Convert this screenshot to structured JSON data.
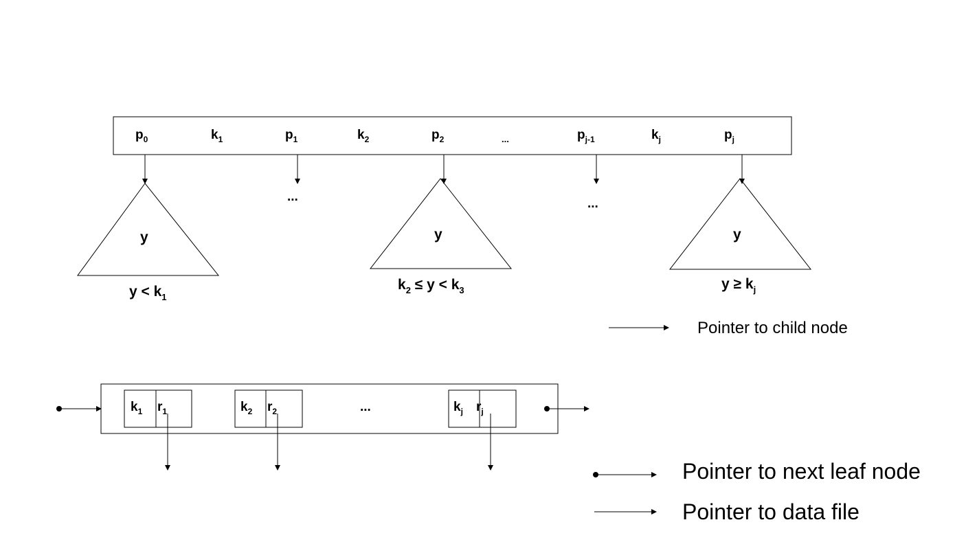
{
  "internal_node": {
    "labels": [
      {
        "base": "p",
        "sub": "0"
      },
      {
        "base": "k",
        "sub": "1"
      },
      {
        "base": "p",
        "sub": "1"
      },
      {
        "base": "k",
        "sub": "2"
      },
      {
        "base": "p",
        "sub": "2"
      },
      {
        "base": "...",
        "sub": ""
      },
      {
        "base": "p",
        "sub": "j-1"
      },
      {
        "base": "k",
        "sub": "j"
      },
      {
        "base": "p",
        "sub": "j"
      }
    ],
    "ellipses": [
      "...",
      "..."
    ],
    "subtrees": [
      {
        "inner": "y",
        "cond": [
          {
            "t": "y < k",
            "s": "1"
          }
        ]
      },
      {
        "inner": "y",
        "cond": [
          {
            "t": "k",
            "s": "2"
          },
          {
            "t": " ≤  y < k",
            "s": "3"
          }
        ]
      },
      {
        "inner": "y",
        "cond": [
          {
            "t": "y ≥ k",
            "s": "j"
          }
        ]
      }
    ]
  },
  "leaf_node": {
    "cells": [
      {
        "k": "k",
        "ks": "1",
        "r": "r",
        "rs": "1"
      },
      {
        "k": "k",
        "ks": "2",
        "r": "r",
        "rs": "2"
      },
      {
        "k": "k",
        "ks": "j",
        "r": "r",
        "rs": "j"
      }
    ],
    "ellipsis": "..."
  },
  "legend": {
    "child_pointer": "Pointer to child node",
    "next_leaf_pointer": "Pointer to next leaf node",
    "data_file_pointer": "Pointer to data file"
  }
}
